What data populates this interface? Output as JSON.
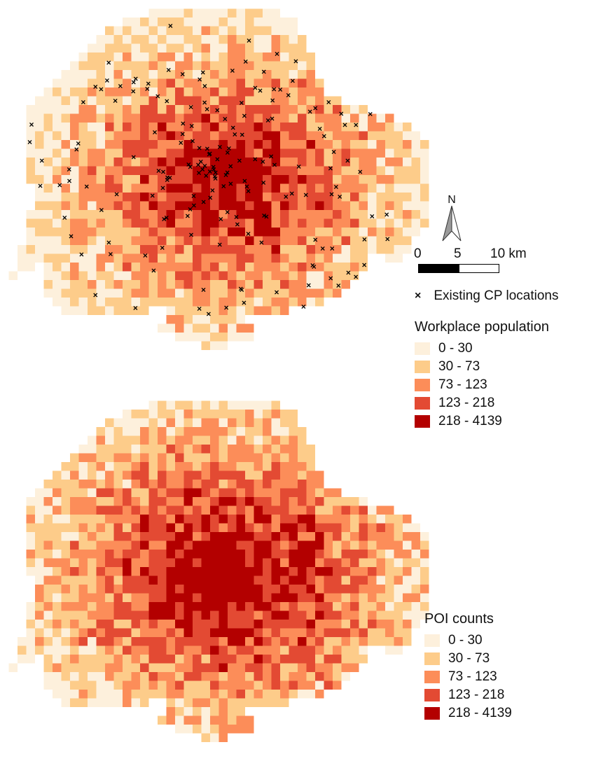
{
  "maps": [
    {
      "name": "workplace-population-map",
      "legend_title": "Workplace population",
      "has_cp_markers": true
    },
    {
      "name": "poi-counts-map",
      "legend_title": "POI counts",
      "has_cp_markers": false
    }
  ],
  "legend": {
    "classes": [
      {
        "label": "0 - 30",
        "color": "#fdf0dc"
      },
      {
        "label": "30 - 73",
        "color": "#fdcc8a"
      },
      {
        "label": "73 - 123",
        "color": "#fc8d59"
      },
      {
        "label": "123 - 218",
        "color": "#e34a33"
      },
      {
        "label": "218 - 4139",
        "color": "#b30000"
      }
    ],
    "workplace_title": "Workplace population",
    "poi_title": "POI counts"
  },
  "markers": {
    "label": "Existing CP locations",
    "symbol": "×"
  },
  "north_arrow": {
    "label": "N"
  },
  "scale_bar": {
    "ticks": [
      "0",
      "5",
      "10 km"
    ]
  }
}
